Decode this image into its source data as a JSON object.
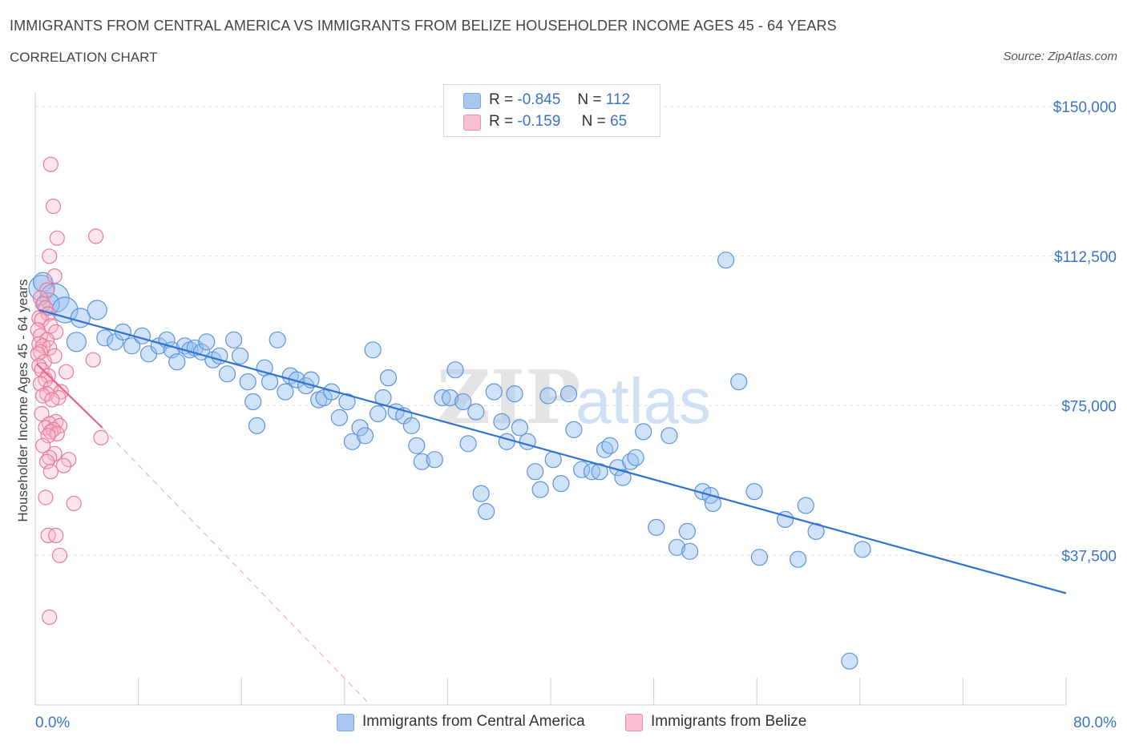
{
  "title": "IMMIGRANTS FROM CENTRAL AMERICA VS IMMIGRANTS FROM BELIZE HOUSEHOLDER INCOME AGES 45 - 64 YEARS",
  "subtitle": "CORRELATION CHART",
  "source": "Source: ZipAtlas.com",
  "watermark": {
    "zip": "ZIP",
    "atlas": "atlas"
  },
  "legend": {
    "r_label": "R =",
    "n_label": "N =",
    "rows": [
      {
        "r": "-0.845",
        "n": "112",
        "color": "#a8c8f0",
        "border": "#7aa8e0"
      },
      {
        "r": "-0.159",
        "n": "65",
        "color": "#f8c0d0",
        "border": "#e890aa"
      }
    ]
  },
  "bottom_legend": [
    {
      "label": "Immigrants from Central America",
      "color": "#a8c8f0",
      "border": "#7aa8e0"
    },
    {
      "label": "Immigrants from Belize",
      "color": "#f8c0d0",
      "border": "#e890aa"
    }
  ],
  "chart_data": {
    "type": "scatter",
    "ylabel": "Householder Income Ages 45 - 64 years",
    "xlim": [
      0,
      80
    ],
    "ylim": [
      0,
      150000
    ],
    "x_tick_labels": [
      "0.0%",
      "80.0%"
    ],
    "y_ticks": [
      37500,
      75000,
      112500,
      150000
    ],
    "y_tick_labels": [
      "$37,500",
      "$75,000",
      "$112,500",
      "$150,000"
    ],
    "grid": true,
    "series": [
      {
        "name": "Immigrants from Central America",
        "color": "#5b93dc",
        "fill": "rgba(150,190,240,0.45)",
        "trend": {
          "x": [
            0.3,
            80
          ],
          "y": [
            99000,
            28000
          ]
        },
        "points": [
          [
            0.5,
            104500,
            16
          ],
          [
            0.6,
            106000,
            12
          ],
          [
            1.5,
            102000,
            18
          ],
          [
            1.0,
            100500,
            14
          ],
          [
            2.3,
            99000,
            16
          ],
          [
            3.5,
            97000,
            12
          ],
          [
            4.8,
            99000,
            12
          ],
          [
            3.2,
            91000,
            12
          ],
          [
            5.4,
            92000,
            10
          ],
          [
            6.2,
            91000,
            10
          ],
          [
            6.8,
            93500,
            10
          ],
          [
            7.5,
            90000,
            10
          ],
          [
            8.3,
            92500,
            10
          ],
          [
            8.8,
            88000,
            10
          ],
          [
            9.6,
            90000,
            10
          ],
          [
            10.2,
            91500,
            10
          ],
          [
            10.6,
            89000,
            10
          ],
          [
            11.0,
            86000,
            10
          ],
          [
            11.6,
            90000,
            10
          ],
          [
            12.0,
            89000,
            10
          ],
          [
            12.4,
            89500,
            10
          ],
          [
            12.9,
            88500,
            10
          ],
          [
            13.3,
            91000,
            10
          ],
          [
            13.8,
            86500,
            10
          ],
          [
            14.3,
            87500,
            10
          ],
          [
            14.9,
            83000,
            10
          ],
          [
            15.4,
            91500,
            10
          ],
          [
            15.9,
            87500,
            10
          ],
          [
            16.5,
            81000,
            10
          ],
          [
            16.9,
            76000,
            10
          ],
          [
            17.2,
            70000,
            10
          ],
          [
            17.8,
            84500,
            10
          ],
          [
            18.2,
            81000,
            10
          ],
          [
            18.8,
            91500,
            10
          ],
          [
            19.4,
            78500,
            10
          ],
          [
            19.8,
            82500,
            10
          ],
          [
            20.3,
            81500,
            10
          ],
          [
            21.0,
            80000,
            10
          ],
          [
            21.4,
            81500,
            10
          ],
          [
            22.0,
            76500,
            10
          ],
          [
            22.4,
            77000,
            10
          ],
          [
            23.0,
            78500,
            10
          ],
          [
            23.6,
            72000,
            10
          ],
          [
            24.2,
            76000,
            10
          ],
          [
            24.6,
            66000,
            10
          ],
          [
            25.2,
            69500,
            10
          ],
          [
            25.6,
            67500,
            10
          ],
          [
            26.2,
            89000,
            10
          ],
          [
            26.6,
            73000,
            10
          ],
          [
            27.0,
            77000,
            10
          ],
          [
            27.4,
            82000,
            10
          ],
          [
            28.0,
            73500,
            10
          ],
          [
            28.6,
            72500,
            10
          ],
          [
            29.2,
            70000,
            10
          ],
          [
            29.6,
            65000,
            10
          ],
          [
            30.0,
            61000,
            10
          ],
          [
            31.0,
            61500,
            10
          ],
          [
            31.6,
            77000,
            10
          ],
          [
            32.2,
            77000,
            10
          ],
          [
            32.6,
            84000,
            10
          ],
          [
            33.2,
            76000,
            10
          ],
          [
            33.6,
            65500,
            10
          ],
          [
            34.2,
            73500,
            10
          ],
          [
            34.6,
            53000,
            10
          ],
          [
            35.0,
            48500,
            10
          ],
          [
            35.6,
            78500,
            10
          ],
          [
            36.2,
            71000,
            10
          ],
          [
            36.6,
            66000,
            10
          ],
          [
            37.2,
            78000,
            10
          ],
          [
            37.6,
            69500,
            10
          ],
          [
            38.2,
            66000,
            10
          ],
          [
            38.8,
            58500,
            10
          ],
          [
            39.2,
            54000,
            10
          ],
          [
            39.8,
            77500,
            10
          ],
          [
            40.2,
            61500,
            10
          ],
          [
            40.8,
            55500,
            10
          ],
          [
            41.4,
            78000,
            10
          ],
          [
            41.8,
            69000,
            10
          ],
          [
            42.4,
            59000,
            10
          ],
          [
            43.2,
            58500,
            10
          ],
          [
            43.8,
            58500,
            10
          ],
          [
            44.2,
            64000,
            10
          ],
          [
            44.6,
            65000,
            10
          ],
          [
            45.2,
            59500,
            10
          ],
          [
            45.6,
            57000,
            10
          ],
          [
            46.2,
            61000,
            10
          ],
          [
            46.6,
            62000,
            10
          ],
          [
            47.2,
            68500,
            10
          ],
          [
            48.2,
            44500,
            10
          ],
          [
            49.2,
            67500,
            10
          ],
          [
            49.8,
            39500,
            10
          ],
          [
            50.6,
            43500,
            10
          ],
          [
            50.8,
            38500,
            10
          ],
          [
            51.8,
            53500,
            10
          ],
          [
            52.4,
            52500,
            10
          ],
          [
            52.6,
            50500,
            10
          ],
          [
            53.6,
            111500,
            10
          ],
          [
            54.6,
            81000,
            10
          ],
          [
            55.8,
            53500,
            10
          ],
          [
            56.2,
            37000,
            10
          ],
          [
            58.2,
            46500,
            10
          ],
          [
            59.2,
            36500,
            10
          ],
          [
            59.8,
            50000,
            10
          ],
          [
            60.6,
            43500,
            10
          ],
          [
            63.2,
            11000,
            10
          ],
          [
            64.2,
            39000,
            10
          ]
        ]
      },
      {
        "name": "Immigrants from Belize",
        "color": "#e87a9c",
        "fill": "rgba(248,180,200,0.35)",
        "trend": {
          "x": [
            0.1,
            5.2
          ],
          "y": [
            85500,
            69500
          ]
        },
        "trend_ext": {
          "x": [
            5.2,
            26.0
          ],
          "y": [
            69500,
            0
          ]
        },
        "points": [
          [
            1.2,
            135500,
            9
          ],
          [
            1.4,
            125000,
            9
          ],
          [
            4.7,
            117500,
            9
          ],
          [
            1.7,
            117000,
            9
          ],
          [
            1.1,
            112500,
            9
          ],
          [
            1.5,
            107500,
            9
          ],
          [
            0.9,
            104000,
            9
          ],
          [
            0.4,
            102000,
            9
          ],
          [
            0.6,
            100500,
            9
          ],
          [
            0.8,
            99500,
            9
          ],
          [
            1.0,
            98000,
            9
          ],
          [
            0.3,
            97000,
            9
          ],
          [
            0.5,
            96500,
            9
          ],
          [
            1.2,
            95000,
            9
          ],
          [
            0.2,
            94000,
            9
          ],
          [
            1.6,
            93500,
            9
          ],
          [
            0.4,
            92500,
            9
          ],
          [
            0.9,
            91500,
            9
          ],
          [
            0.3,
            90500,
            9
          ],
          [
            0.6,
            90000,
            9
          ],
          [
            1.1,
            89500,
            9
          ],
          [
            0.4,
            88500,
            9
          ],
          [
            0.2,
            88000,
            9
          ],
          [
            1.5,
            87500,
            9
          ],
          [
            4.5,
            86500,
            9
          ],
          [
            0.7,
            86000,
            9
          ],
          [
            0.3,
            85000,
            9
          ],
          [
            0.5,
            84000,
            9
          ],
          [
            2.4,
            83500,
            9
          ],
          [
            1.0,
            82500,
            9
          ],
          [
            0.8,
            81500,
            9
          ],
          [
            0.4,
            80500,
            9
          ],
          [
            1.2,
            79500,
            9
          ],
          [
            2.0,
            78500,
            9
          ],
          [
            0.9,
            78000,
            9
          ],
          [
            0.6,
            77500,
            9
          ],
          [
            1.8,
            77000,
            9
          ],
          [
            1.3,
            76500,
            9
          ],
          [
            0.5,
            73000,
            9
          ],
          [
            1.6,
            71000,
            9
          ],
          [
            1.1,
            70500,
            9
          ],
          [
            1.9,
            70000,
            9
          ],
          [
            0.8,
            69500,
            9
          ],
          [
            1.4,
            69000,
            9
          ],
          [
            1.2,
            68500,
            9
          ],
          [
            1.7,
            68000,
            9
          ],
          [
            1.0,
            67500,
            9
          ],
          [
            5.1,
            67000,
            9
          ],
          [
            0.6,
            65000,
            9
          ],
          [
            1.5,
            63000,
            9
          ],
          [
            1.1,
            62000,
            9
          ],
          [
            2.6,
            61500,
            9
          ],
          [
            0.9,
            61000,
            9
          ],
          [
            2.2,
            60000,
            9
          ],
          [
            1.2,
            58500,
            9
          ],
          [
            0.8,
            52000,
            9
          ],
          [
            3.0,
            50500,
            9
          ],
          [
            1.0,
            42500,
            9
          ],
          [
            1.6,
            42500,
            9
          ],
          [
            1.9,
            37500,
            9
          ],
          [
            1.1,
            22000,
            9
          ]
        ]
      }
    ]
  }
}
